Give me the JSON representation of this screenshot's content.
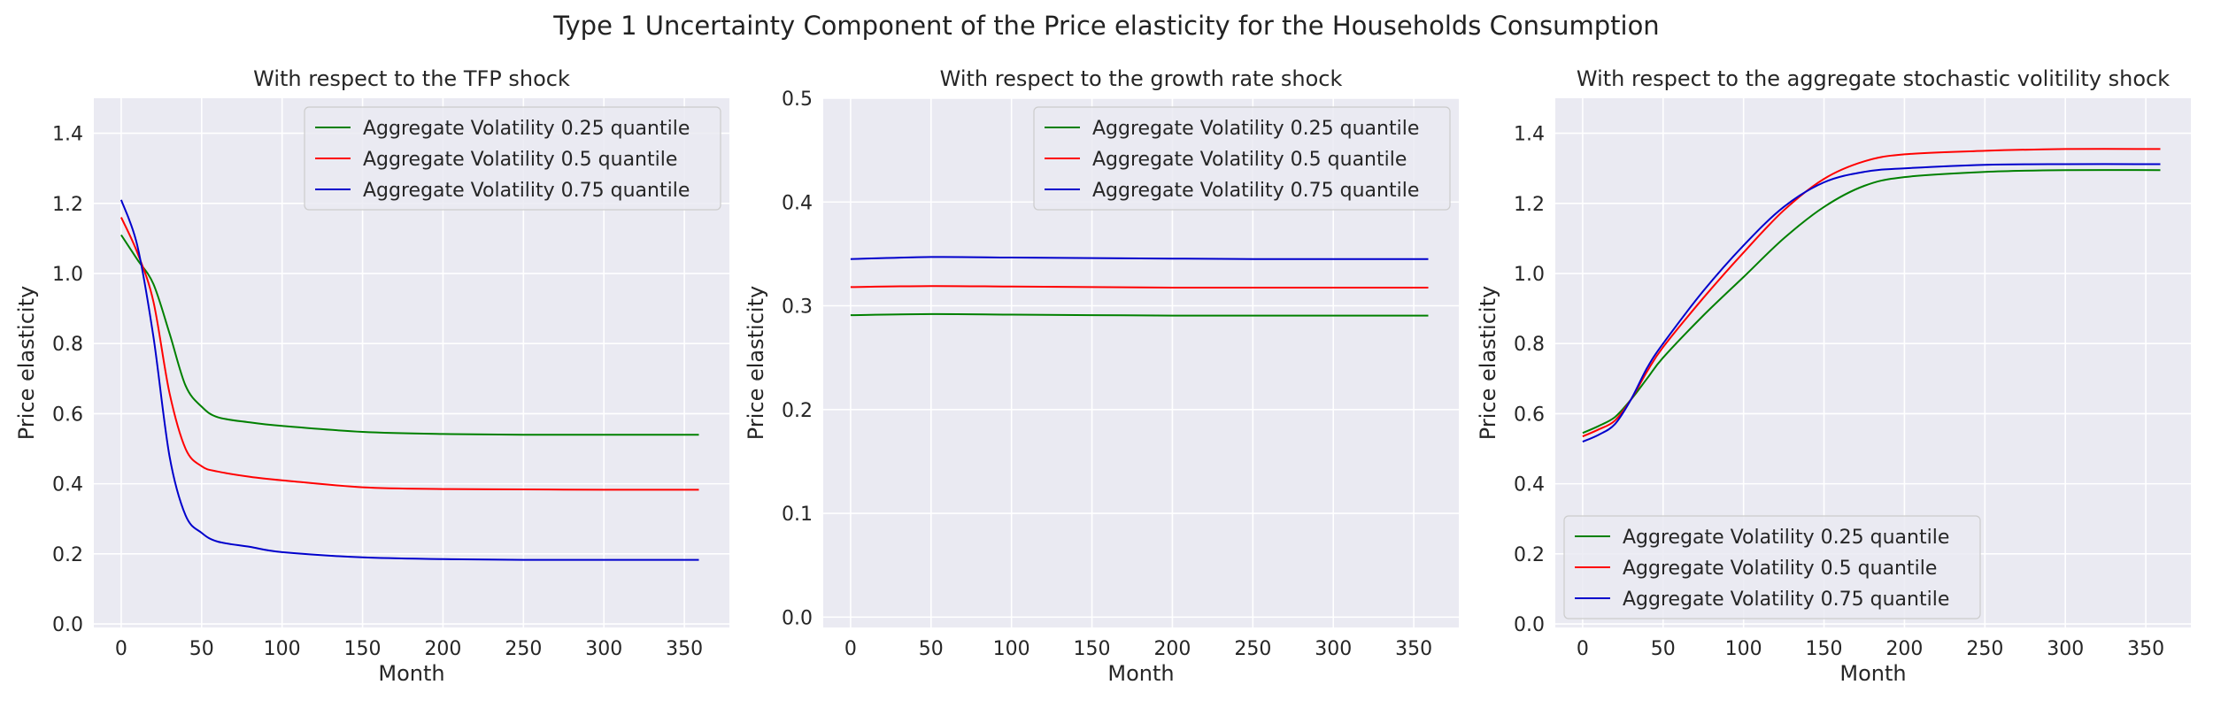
{
  "figure": {
    "title": "Type 1 Uncertainty Component of the Price elasticity for the Households Consumption"
  },
  "chart_data": [
    {
      "type": "line",
      "title": "With respect to the TFP shock",
      "xlabel": "Month",
      "ylabel": "Price elasticity",
      "xlim": [
        -17,
        378
      ],
      "ylim": [
        -0.01,
        1.5
      ],
      "xticks": [
        0,
        50,
        100,
        150,
        200,
        250,
        300,
        350
      ],
      "yticks": [
        0.0,
        0.2,
        0.4,
        0.6,
        0.8,
        1.0,
        1.2,
        1.4
      ],
      "grid": true,
      "legend_position": "top-right",
      "series": [
        {
          "name": "Aggregate Volatility 0.25 quantile",
          "color": "#008000",
          "x": [
            0,
            10,
            20,
            30,
            40,
            50,
            60,
            80,
            100,
            150,
            200,
            250,
            300,
            359
          ],
          "y": [
            1.11,
            1.04,
            0.97,
            0.83,
            0.68,
            0.62,
            0.59,
            0.575,
            0.565,
            0.548,
            0.542,
            0.54,
            0.54,
            0.54
          ]
        },
        {
          "name": "Aggregate Volatility 0.5 quantile",
          "color": "#ff0000",
          "x": [
            0,
            10,
            20,
            30,
            40,
            50,
            60,
            80,
            100,
            150,
            200,
            250,
            300,
            359
          ],
          "y": [
            1.16,
            1.06,
            0.92,
            0.66,
            0.5,
            0.45,
            0.435,
            0.42,
            0.41,
            0.39,
            0.385,
            0.384,
            0.383,
            0.383
          ]
        },
        {
          "name": "Aggregate Volatility 0.75 quantile",
          "color": "#0000cc",
          "x": [
            0,
            10,
            20,
            30,
            40,
            50,
            60,
            80,
            100,
            150,
            200,
            250,
            300,
            359
          ],
          "y": [
            1.21,
            1.08,
            0.82,
            0.48,
            0.31,
            0.26,
            0.235,
            0.22,
            0.205,
            0.19,
            0.185,
            0.183,
            0.183,
            0.183
          ]
        }
      ]
    },
    {
      "type": "line",
      "title": "With respect to the growth rate shock",
      "xlabel": "Month",
      "ylabel": "Price elasticity",
      "xlim": [
        -17,
        378
      ],
      "ylim": [
        -0.01,
        0.5
      ],
      "xticks": [
        0,
        50,
        100,
        150,
        200,
        250,
        300,
        350
      ],
      "yticks": [
        0.0,
        0.1,
        0.2,
        0.3,
        0.4,
        0.5
      ],
      "grid": true,
      "legend_position": "top-right",
      "series": [
        {
          "name": "Aggregate Volatility 0.25 quantile",
          "color": "#008000",
          "x": [
            0,
            50,
            100,
            150,
            200,
            250,
            300,
            359
          ],
          "y": [
            0.291,
            0.292,
            0.2915,
            0.291,
            0.2905,
            0.2905,
            0.2905,
            0.2905
          ]
        },
        {
          "name": "Aggregate Volatility 0.5 quantile",
          "color": "#ff0000",
          "x": [
            0,
            50,
            100,
            150,
            200,
            250,
            300,
            359
          ],
          "y": [
            0.318,
            0.319,
            0.3185,
            0.318,
            0.3175,
            0.3175,
            0.3175,
            0.3175
          ]
        },
        {
          "name": "Aggregate Volatility 0.75 quantile",
          "color": "#0000cc",
          "x": [
            0,
            50,
            100,
            150,
            200,
            250,
            300,
            359
          ],
          "y": [
            0.345,
            0.347,
            0.3465,
            0.346,
            0.3455,
            0.345,
            0.345,
            0.345
          ]
        }
      ]
    },
    {
      "type": "line",
      "title": "With respect to the aggregate stochastic volitility shock",
      "xlabel": "Month",
      "ylabel": "Price elasticity",
      "xlim": [
        -17,
        378
      ],
      "ylim": [
        -0.01,
        1.5
      ],
      "xticks": [
        0,
        50,
        100,
        150,
        200,
        250,
        300,
        350
      ],
      "yticks": [
        0.0,
        0.2,
        0.4,
        0.6,
        0.8,
        1.0,
        1.2,
        1.4
      ],
      "grid": true,
      "legend_position": "bottom-left",
      "series": [
        {
          "name": "Aggregate Volatility 0.25 quantile",
          "color": "#008000",
          "x": [
            0,
            10,
            20,
            30,
            40,
            50,
            75,
            100,
            125,
            150,
            175,
            200,
            250,
            300,
            359
          ],
          "y": [
            0.545,
            0.565,
            0.59,
            0.64,
            0.7,
            0.76,
            0.88,
            0.99,
            1.1,
            1.19,
            1.25,
            1.275,
            1.29,
            1.295,
            1.295
          ]
        },
        {
          "name": "Aggregate Volatility 0.5 quantile",
          "color": "#ff0000",
          "x": [
            0,
            10,
            20,
            30,
            40,
            50,
            75,
            100,
            125,
            150,
            175,
            200,
            250,
            300,
            359
          ],
          "y": [
            0.535,
            0.555,
            0.58,
            0.64,
            0.72,
            0.79,
            0.93,
            1.06,
            1.18,
            1.27,
            1.32,
            1.34,
            1.35,
            1.355,
            1.355
          ]
        },
        {
          "name": "Aggregate Volatility 0.75 quantile",
          "color": "#0000cc",
          "x": [
            0,
            10,
            20,
            30,
            40,
            50,
            75,
            100,
            125,
            150,
            175,
            200,
            250,
            300,
            359
          ],
          "y": [
            0.52,
            0.54,
            0.57,
            0.64,
            0.73,
            0.8,
            0.95,
            1.08,
            1.19,
            1.26,
            1.29,
            1.3,
            1.31,
            1.312,
            1.312
          ]
        }
      ]
    }
  ]
}
